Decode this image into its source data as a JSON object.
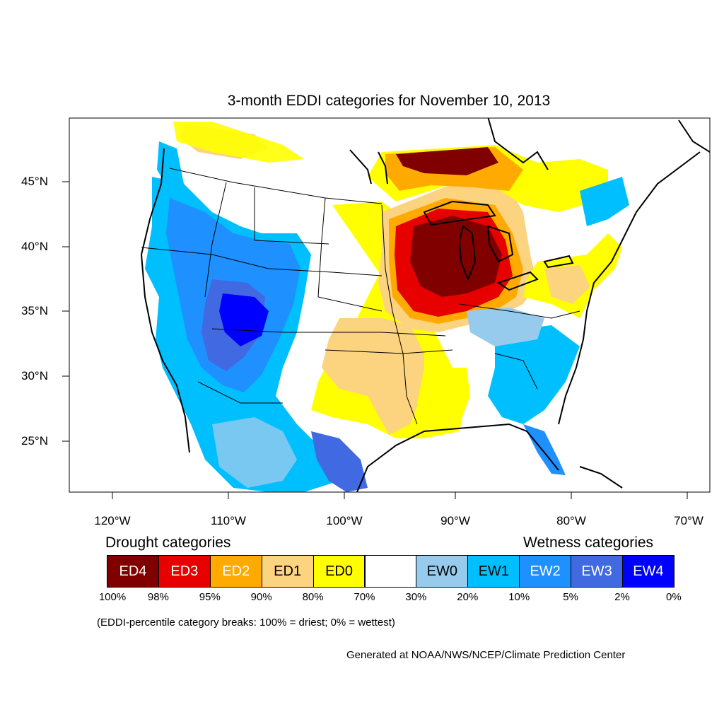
{
  "title": "3-month EDDI categories for November 10, 2013",
  "lat_labels": [
    "45°N",
    "40°N",
    "35°N",
    "30°N",
    "25°N"
  ],
  "lon_labels": [
    "120°W",
    "110°W",
    "100°W",
    "90°W",
    "80°W",
    "70°W"
  ],
  "legend": {
    "drought_heading": "Drought categories",
    "wetness_heading": "Wetness categories",
    "categories": [
      {
        "label": "ED4",
        "color": "#800000",
        "text_color": "#ffffff"
      },
      {
        "label": "ED3",
        "color": "#e60000",
        "text_color": "#ffffff"
      },
      {
        "label": "ED2",
        "color": "#ffaa00",
        "text_color": "#ffffff"
      },
      {
        "label": "ED1",
        "color": "#fcd37f",
        "text_color": "#000000"
      },
      {
        "label": "ED0",
        "color": "#ffff00",
        "text_color": "#000000"
      },
      {
        "label": "",
        "color": "#ffffff",
        "text_color": "#000000"
      },
      {
        "label": "EW0",
        "color": "#97cbed",
        "text_color": "#000000"
      },
      {
        "label": "EW1",
        "color": "#00bfff",
        "text_color": "#000000"
      },
      {
        "label": "EW2",
        "color": "#1e90ff",
        "text_color": "#ffffff"
      },
      {
        "label": "EW3",
        "color": "#4169e1",
        "text_color": "#ffffff"
      },
      {
        "label": "EW4",
        "color": "#0000ff",
        "text_color": "#ffffff"
      }
    ],
    "percentiles": [
      "100%",
      "98%",
      "95%",
      "90%",
      "80%",
      "70%",
      "30%",
      "20%",
      "10%",
      "5%",
      "2%",
      "0%"
    ]
  },
  "note": "(EDDI-percentile category breaks: 100% = driest; 0% = wettest)",
  "credit": "Generated at NOAA/NWS/NCEP/Climate Prediction Center"
}
